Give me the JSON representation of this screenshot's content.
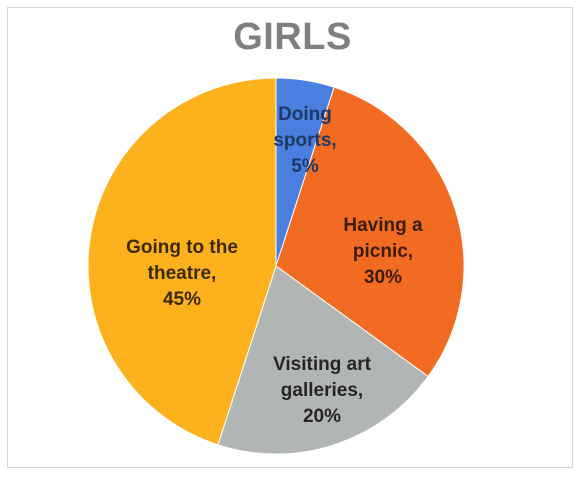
{
  "chart_data": {
    "type": "pie",
    "title": "GIRLS",
    "slices": [
      {
        "label_lines": [
          "Doing",
          "sports,",
          "5%"
        ],
        "value": 5,
        "color": "#4a7fe0",
        "label_color": "#1f3864"
      },
      {
        "label_lines": [
          "Having a",
          "picnic,",
          "30%"
        ],
        "value": 30,
        "color": "#f26b22",
        "label_color": "#3a1c0c"
      },
      {
        "label_lines": [
          "Visiting art",
          "galleries,",
          "20%"
        ],
        "value": 20,
        "color": "#b1b5b3",
        "label_color": "#262626"
      },
      {
        "label_lines": [
          "Going to the",
          "theatre,",
          "45%"
        ],
        "value": 45,
        "color": "#fdb11d",
        "label_color": "#3a2a06"
      }
    ],
    "start_angle_deg": 0,
    "direction": "clockwise",
    "legend": "none"
  }
}
